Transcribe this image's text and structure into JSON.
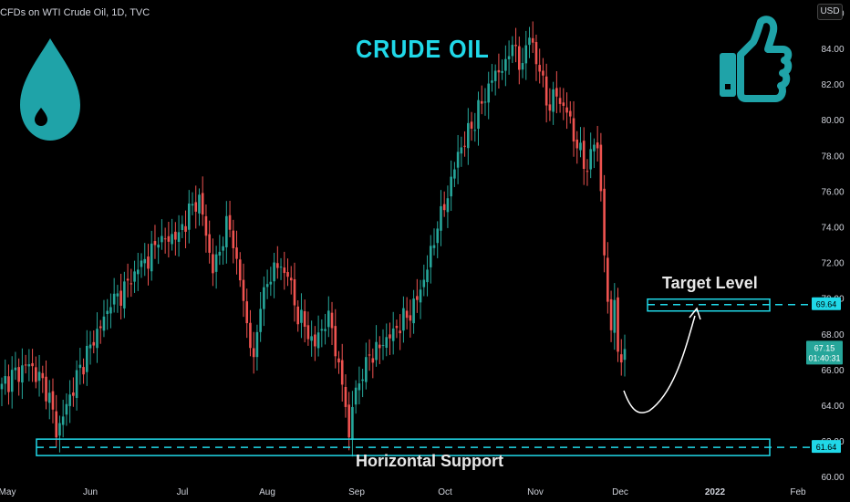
{
  "header": {
    "symbol_title": "CFDs on WTI Crude Oil, 1D, TVC",
    "currency_badge": "USD"
  },
  "colors": {
    "background": "#000000",
    "up": "#26a69a",
    "down": "#ef5350",
    "annotation_cyan": "#20d8e8",
    "annotation_teal": "#1fa3a8",
    "axis_text": "#d1d4dc"
  },
  "icons": [
    "oil-drop-icon",
    "thumbs-up-icon"
  ],
  "annotations": {
    "headline": "CRUDE OIL",
    "target_label": "Target Level",
    "support_label": "Horizontal Support"
  },
  "chart_data": {
    "type": "candlestick",
    "title": "",
    "xlabel": "",
    "ylabel": "",
    "ylim": [
      59.6,
      86.2
    ],
    "y_ticks": [
      "60.00",
      "62.00",
      "64.00",
      "66.00",
      "68.00",
      "70.00",
      "72.00",
      "74.00",
      "76.00",
      "78.00",
      "80.00",
      "82.00",
      "84.00",
      "86.00"
    ],
    "x_ticks": [
      "May",
      "Jun",
      "Jul",
      "Aug",
      "Sep",
      "Oct",
      "Nov",
      "Dec",
      "2022",
      "Feb"
    ],
    "price_labels": {
      "last_price": "67.15",
      "countdown": "01:40:31",
      "target_level": "69.64",
      "support_level": "61.64"
    },
    "levels": {
      "support": 61.64,
      "target": 69.64
    },
    "shown_price_range": {
      "low": 62.5,
      "high": 85.4,
      "last": 67.15
    },
    "candle_count": 152
  }
}
